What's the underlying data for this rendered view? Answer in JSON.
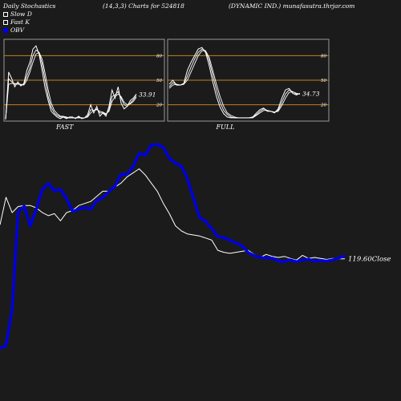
{
  "header": {
    "left": "Daily Stochastics",
    "center": "(14,3,3) Charts for 524818",
    "right": "(DYNAMIC IND.) munafasutra.thrjar.com"
  },
  "legend": {
    "items": [
      {
        "label": "Slow  D",
        "color": "#ffffff"
      },
      {
        "label": "Fast K",
        "color": "#ffffff"
      },
      {
        "label": "OBV",
        "color": "#0000dd"
      }
    ]
  },
  "colors": {
    "background": "#1b1b1b",
    "panel": "#1b1b1b",
    "level_line": "#c08020",
    "stoch_line": "#ffffff",
    "price_line": "#ffffff",
    "obv_line": "#0000dd"
  },
  "chart_data": [
    {
      "type": "line",
      "panel": "FAST",
      "xlabel": "FAST",
      "ylim": [
        0,
        100
      ],
      "levels": [
        20,
        50,
        80
      ],
      "level_labels": [
        "80",
        "50",
        "20"
      ],
      "last_value_label": "33.91",
      "series": [
        {
          "values": [
            2,
            60,
            52,
            42,
            48,
            43,
            46,
            62,
            72,
            88,
            92,
            82,
            62,
            40,
            25,
            12,
            8,
            5,
            3,
            5,
            3,
            5,
            5,
            3,
            6,
            3,
            4,
            8,
            20,
            10,
            18,
            6,
            10,
            6,
            18,
            38,
            28,
            42,
            22,
            15,
            18,
            25,
            28,
            33
          ]
        },
        {
          "values": [
            2,
            52,
            48,
            45,
            46,
            44,
            45,
            55,
            65,
            80,
            87,
            84,
            70,
            50,
            30,
            17,
            10,
            7,
            5,
            5,
            4,
            4,
            4,
            4,
            5,
            4,
            4,
            6,
            14,
            13,
            15,
            10,
            10,
            8,
            14,
            30,
            32,
            36,
            28,
            20,
            18,
            22,
            26,
            31
          ]
        },
        {
          "values": [
            2,
            45,
            46,
            46,
            45,
            45,
            44,
            50,
            60,
            72,
            82,
            84,
            76,
            58,
            38,
            22,
            13,
            9,
            6,
            6,
            5,
            4,
            4,
            4,
            4,
            4,
            4,
            5,
            10,
            13,
            14,
            12,
            11,
            9,
            12,
            24,
            30,
            33,
            30,
            23,
            20,
            21,
            24,
            29
          ]
        }
      ]
    },
    {
      "type": "line",
      "panel": "FULL",
      "xlabel": "FULL",
      "ylim": [
        0,
        100
      ],
      "levels": [
        20,
        50,
        80
      ],
      "level_labels": [
        "80",
        "50",
        "20"
      ],
      "last_value_label": "34.73",
      "series": [
        {
          "values": [
            45,
            50,
            44,
            44,
            46,
            62,
            72,
            80,
            88,
            90,
            84,
            68,
            48,
            30,
            17,
            9,
            5,
            4,
            4,
            4,
            4,
            4,
            4,
            5,
            10,
            14,
            16,
            12,
            12,
            10,
            15,
            28,
            38,
            40,
            34,
            32,
            34
          ]
        },
        {
          "values": [
            42,
            47,
            45,
            44,
            45,
            55,
            66,
            76,
            84,
            88,
            86,
            74,
            56,
            38,
            23,
            13,
            8,
            5,
            4,
            4,
            4,
            4,
            4,
            5,
            8,
            12,
            15,
            13,
            12,
            11,
            13,
            23,
            33,
            38,
            36,
            33,
            33
          ]
        },
        {
          "values": [
            40,
            44,
            45,
            44,
            45,
            50,
            60,
            70,
            80,
            86,
            86,
            78,
            62,
            45,
            30,
            18,
            10,
            7,
            5,
            4,
            4,
            4,
            4,
            4,
            7,
            10,
            13,
            13,
            12,
            11,
            12,
            19,
            28,
            35,
            36,
            34,
            33
          ]
        }
      ]
    },
    {
      "type": "line",
      "panel": "price-obv",
      "last_value_label": "119.60",
      "last_value_suffix": "Close",
      "series": [
        {
          "name": "OBV",
          "values": [
            0.0,
            0.012,
            0.19,
            0.668,
            0.697,
            0.6,
            0.682,
            0.778,
            0.808,
            0.771,
            0.779,
            0.734,
            0.671,
            0.682,
            0.69,
            0.682,
            0.724,
            0.738,
            0.768,
            0.794,
            0.853,
            0.853,
            0.89,
            0.956,
            0.947,
            0.996,
            1.0,
            0.985,
            0.931,
            0.908,
            0.893,
            0.83,
            0.734,
            0.641,
            0.622,
            0.586,
            0.548,
            0.542,
            0.53,
            0.516,
            0.502,
            0.47,
            0.454,
            0.445,
            0.442,
            0.442,
            0.427,
            0.424,
            0.433,
            0.424,
            0.433,
            0.436,
            0.427,
            0.43,
            0.427,
            0.433,
            0.442,
            0.454
          ]
        },
        {
          "name": "Price",
          "values": [
            0.605,
            0.74,
            0.665,
            0.695,
            0.7,
            0.7,
            0.688,
            0.665,
            0.65,
            0.66,
            0.625,
            0.665,
            0.675,
            0.7,
            0.71,
            0.72,
            0.745,
            0.77,
            0.77,
            0.79,
            0.81,
            0.84,
            0.86,
            0.88,
            0.85,
            0.81,
            0.77,
            0.71,
            0.66,
            0.6,
            0.575,
            0.56,
            0.555,
            0.55,
            0.54,
            0.53,
            0.48,
            0.47,
            0.465,
            0.47,
            0.475,
            0.48,
            0.46,
            0.445,
            0.46,
            0.45,
            0.445,
            0.45,
            0.44,
            0.432,
            0.455,
            0.44,
            0.445,
            0.44,
            0.435,
            0.44,
            0.438,
            0.438
          ]
        }
      ]
    }
  ]
}
